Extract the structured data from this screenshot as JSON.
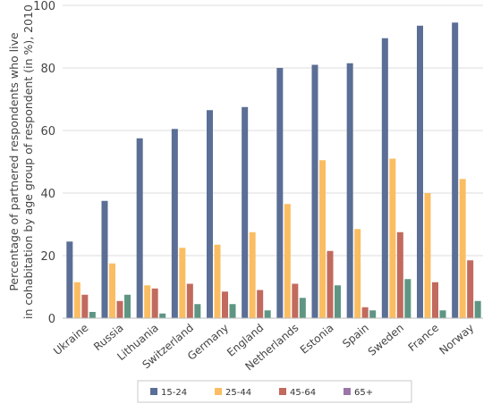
{
  "chart_data": {
    "type": "bar",
    "ylabel_lines": [
      "Percentage of partnered respondents who live",
      "in cohabitation by age group of respondent (in %), 2010"
    ],
    "ylim": [
      0,
      100
    ],
    "yticks": [
      0,
      20,
      40,
      60,
      80,
      100
    ],
    "grid": true,
    "legend_position": "bottom",
    "categories": [
      "Ukraine",
      "Russia",
      "Lithuania",
      "Switzerland",
      "Germany",
      "England",
      "Netherlands",
      "Estonia",
      "Spain",
      "Sweden",
      "France",
      "Norway"
    ],
    "series": [
      {
        "name": "15-24",
        "color": "#5a6e96",
        "values": [
          24.5,
          37.5,
          57.5,
          60.5,
          66.5,
          67.5,
          80,
          81,
          81.5,
          89.5,
          93.5,
          94.5
        ]
      },
      {
        "name": "25-44",
        "color": "#fbbd62",
        "values": [
          11.5,
          17.5,
          10.5,
          22.5,
          23.5,
          27.5,
          36.5,
          50.5,
          28.5,
          51,
          40,
          44.5
        ]
      },
      {
        "name": "45-64",
        "color": "#c26a5e",
        "values": [
          7.5,
          5.5,
          9.5,
          11,
          8.5,
          9,
          11,
          21.5,
          3.5,
          27.5,
          11.5,
          18.5
        ]
      },
      {
        "name": "65+",
        "color": "#9a76a8",
        "values": [
          null,
          null,
          null,
          null,
          null,
          null,
          null,
          null,
          null,
          null,
          null,
          null
        ]
      },
      {
        "name": "",
        "color": "#5e9683",
        "values": [
          2,
          7.5,
          1.5,
          4.5,
          4.5,
          2.5,
          6.5,
          10.5,
          2.5,
          12.5,
          2.5,
          5.5
        ]
      }
    ]
  }
}
